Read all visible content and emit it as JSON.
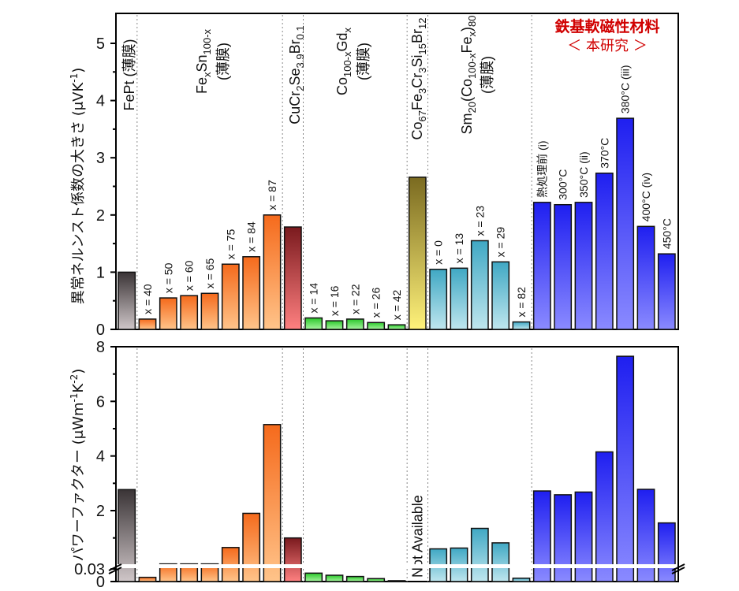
{
  "chart_data": [
    {
      "type": "bar",
      "panel": "top",
      "ylabel": "異常ネルンスト係数の大きさ (μVK⁻¹)",
      "ylabel_main": "異常ネルンスト係数の大きさ (μVK",
      "ylabel_sup": "-1",
      "ylabel_close": ")",
      "ylim": [
        0,
        5.5
      ],
      "yticks": [
        0,
        1,
        2,
        3,
        4,
        5
      ],
      "minor_ticks": [
        0.5,
        1.5,
        2.5,
        3.5,
        4.5
      ],
      "grid": false,
      "highlight_title": "鉄基軟磁性材料",
      "highlight_subtitle": "＜ 本研究 ＞",
      "groups": [
        {
          "name": "FePt (薄膜)",
          "color": "gray",
          "bars": [
            {
              "label": "",
              "value": 1.0
            }
          ]
        },
        {
          "name": "FexSn100-x (薄膜)",
          "color": "orange",
          "bars": [
            {
              "label": "x = 40",
              "value": 0.18
            },
            {
              "label": "x = 50",
              "value": 0.55
            },
            {
              "label": "x = 60",
              "value": 0.59
            },
            {
              "label": "x = 65",
              "value": 0.63
            },
            {
              "label": "x = 75",
              "value": 1.14
            },
            {
              "label": "x = 84",
              "value": 1.27
            },
            {
              "label": "x = 87",
              "value": 2.0
            }
          ]
        },
        {
          "name": "CuCr2Se3.9Br0.1",
          "color": "red",
          "bars": [
            {
              "label": "",
              "value": 1.79
            }
          ]
        },
        {
          "name": "Co100-xGdx (薄膜)",
          "color": "green",
          "bars": [
            {
              "label": "x = 14",
              "value": 0.2
            },
            {
              "label": "x = 16",
              "value": 0.15
            },
            {
              "label": "x = 22",
              "value": 0.18
            },
            {
              "label": "x = 26",
              "value": 0.12
            },
            {
              "label": "x = 42",
              "value": 0.08
            }
          ]
        },
        {
          "name": "Co67Fe3Cr3Si15Br12",
          "color": "olive",
          "bars": [
            {
              "label": "",
              "value": 2.66
            }
          ]
        },
        {
          "name": "Sm20(Co100-xFex)80 (薄膜)",
          "color": "teal",
          "bars": [
            {
              "label": "x = 0",
              "value": 1.05
            },
            {
              "label": "x = 13",
              "value": 1.07
            },
            {
              "label": "x = 23",
              "value": 1.55
            },
            {
              "label": "x = 29",
              "value": 1.18
            },
            {
              "label": "x = 82",
              "value": 0.13
            }
          ]
        },
        {
          "name": "鉄基軟磁性材料 ＜本研究＞",
          "color": "blue",
          "bars": [
            {
              "label": "熱処理前 (i)",
              "value": 2.22
            },
            {
              "label": "300°C",
              "value": 2.18
            },
            {
              "label": "350°C (ii)",
              "value": 2.22
            },
            {
              "label": "370°C",
              "value": 2.73
            },
            {
              "label": "380°C (iii)",
              "value": 3.69
            },
            {
              "label": "400°C (iv)",
              "value": 1.8
            },
            {
              "label": "450°C",
              "value": 1.32
            }
          ]
        }
      ]
    },
    {
      "type": "bar",
      "panel": "bottom",
      "ylabel": "パワーファクター (μWm⁻¹K⁻²)",
      "ylabel_main": "パワーファクター (μWm",
      "ylabel_sup1": "-1",
      "ylabel_mid": "K",
      "ylabel_sup2": "-2",
      "ylabel_close": ")",
      "axis_break": 0.03,
      "ylim_lower": [
        0,
        0.03
      ],
      "ylim_upper": [
        0.03,
        8
      ],
      "yticks": [
        "0",
        "0.03",
        "2",
        "4",
        "6",
        "8"
      ],
      "grid": false,
      "not_available_label": "Not Available",
      "groups": [
        {
          "name": "FePt",
          "values": [
            2.77
          ]
        },
        {
          "name": "FexSn100-x",
          "values": [
            0.01,
            0.05,
            0.05,
            0.05,
            0.65,
            1.9,
            5.15
          ]
        },
        {
          "name": "CuCr2Se3.9Br0.1",
          "values": [
            1.0
          ]
        },
        {
          "name": "Co100-xGdx",
          "values": [
            0.02,
            0.015,
            0.012,
            0.007,
            0.002
          ]
        },
        {
          "name": "Co67Fe3Cr3Si15Br12",
          "values": [
            null
          ]
        },
        {
          "name": "Sm20(Co100-xFex)80",
          "values": [
            0.6,
            0.63,
            1.35,
            0.82,
            0.008
          ]
        },
        {
          "name": "鉄基軟磁性材料",
          "values": [
            2.72,
            2.58,
            2.68,
            4.15,
            7.65,
            2.78,
            1.55
          ]
        }
      ]
    }
  ],
  "colors": {
    "gray": [
      "#3a3436",
      "#cfc6c8"
    ],
    "orange": [
      "#f56a1c",
      "#ffc48a"
    ],
    "red": [
      "#7a1a1e",
      "#ff8080"
    ],
    "green": [
      "#2cc82c",
      "#a8f5a0"
    ],
    "olive": [
      "#7a6a20",
      "#fff27a"
    ],
    "teal": [
      "#40a8c4",
      "#bfe6ee"
    ],
    "blue": [
      "#1f1ff0",
      "#8a8aff"
    ],
    "highlight": "#d00000"
  }
}
